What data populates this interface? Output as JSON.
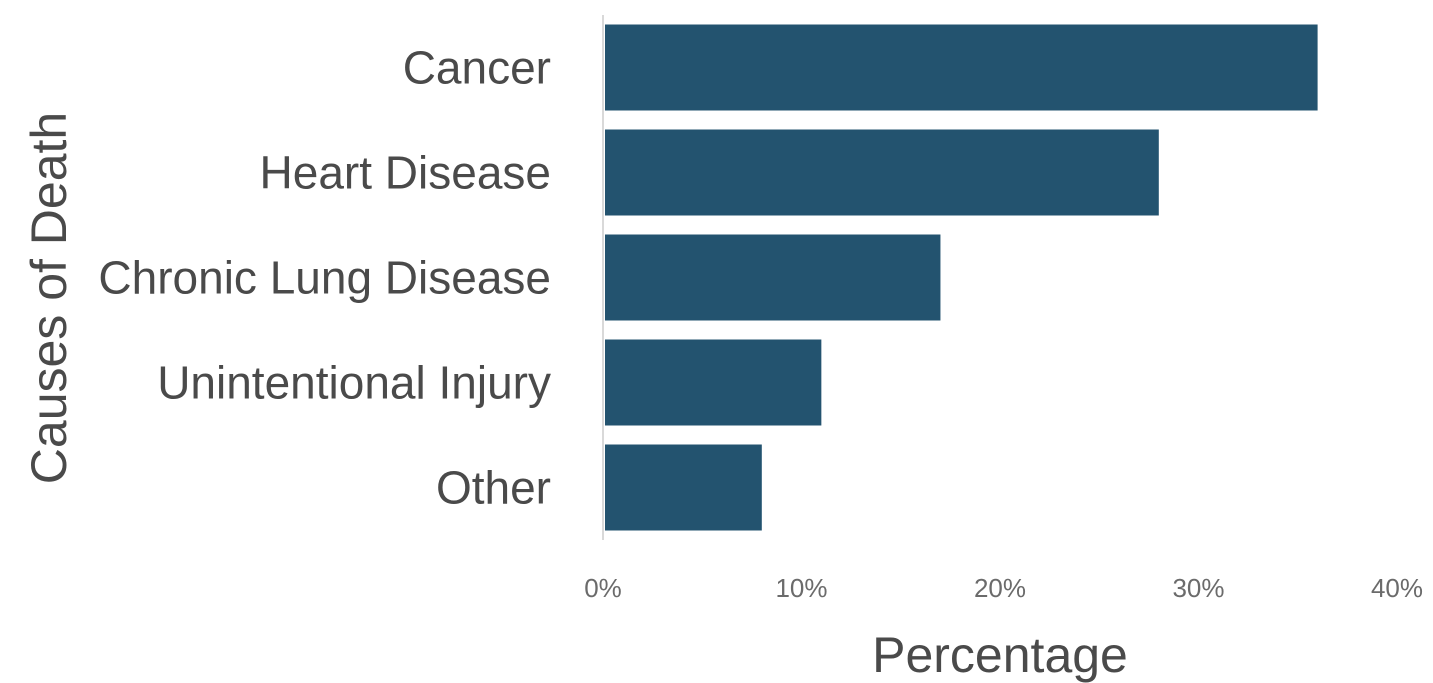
{
  "chart_data": {
    "type": "bar",
    "orientation": "horizontal",
    "categories": [
      "Cancer",
      "Heart Disease",
      "Chronic Lung Disease",
      "Unintentional Injury",
      "Other"
    ],
    "values": [
      36,
      28,
      17,
      11,
      8
    ],
    "value_unit": "%",
    "xlabel": "Percentage",
    "ylabel": "Causes of Death",
    "xlim": [
      0,
      40
    ],
    "x_ticks": [
      "0%",
      "10%",
      "20%",
      "30%",
      "40%"
    ],
    "grid": false,
    "legend": "none",
    "bar_color": "#23536f"
  }
}
